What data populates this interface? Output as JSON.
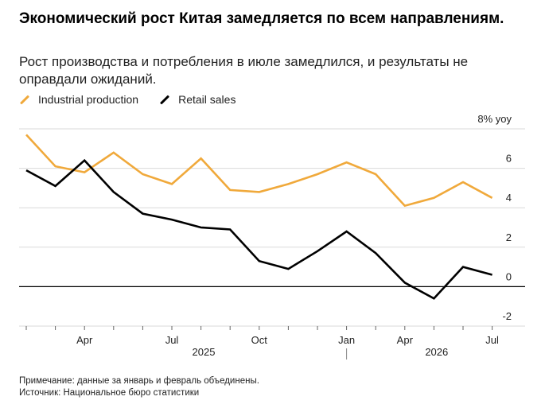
{
  "header": {
    "title": "Экономический рост Китая замедляется по всем направлениям.",
    "subtitle": "Рост производства и потребления в июле замедлился, и результаты не оправдали ожиданий."
  },
  "footer": {
    "note": "Примечание: данные за январь и февраль объединены.",
    "source": "Источник: Национальное бюро статистики"
  },
  "colors": {
    "industrial": "#f0a93b",
    "retail": "#000000",
    "grid": "#d9d9d9",
    "zero_line": "#000000"
  },
  "chart_data": {
    "type": "line",
    "title": "Экономический рост Китая замедляется по всем направлениям.",
    "subtitle": "Рост производства и потребления в июле замедлился, и результаты не оправдали ожиданий.",
    "unit": "% yoy",
    "ylim": [
      -2,
      8
    ],
    "y_ticks": [
      {
        "value": 8,
        "label": "8% yoy"
      },
      {
        "value": 6,
        "label": "6"
      },
      {
        "value": 4,
        "label": "4"
      },
      {
        "value": 2,
        "label": "2"
      },
      {
        "value": 0,
        "label": "0"
      },
      {
        "value": -2,
        "label": "-2"
      }
    ],
    "grid": true,
    "legend_position": "top-left",
    "x": [
      "2025-02",
      "2025-03",
      "2025-04",
      "2025-05",
      "2025-06",
      "2025-07",
      "2025-08",
      "2025-09",
      "2025-10",
      "2025-11",
      "2025-12",
      "2026-01/02",
      "2026-03",
      "2026-04",
      "2026-05",
      "2026-06",
      "2026-07"
    ],
    "x_tick_labels": [
      {
        "x": "2025-04",
        "label": "Apr"
      },
      {
        "x": "2025-07",
        "label": "Jul"
      },
      {
        "x": "2025-10",
        "label": "Oct"
      },
      {
        "x": "2026-01/02",
        "label": "Jan"
      },
      {
        "x": "2026-04",
        "label": "Apr"
      },
      {
        "x": "2026-07",
        "label": "Jul"
      }
    ],
    "year_labels": [
      {
        "x": "2025-07",
        "label": "2025"
      },
      {
        "x": "2026-04",
        "label": "2026"
      }
    ],
    "series": [
      {
        "name": "Industrial production",
        "color": "#f0a93b",
        "values": [
          7.7,
          6.1,
          5.8,
          6.8,
          5.7,
          5.2,
          6.5,
          4.9,
          4.8,
          5.2,
          5.7,
          6.3,
          5.7,
          4.1,
          4.5,
          5.3,
          4.5
        ]
      },
      {
        "name": "Retail sales",
        "color": "#000000",
        "values": [
          5.9,
          5.1,
          6.4,
          4.8,
          3.7,
          3.4,
          3.0,
          2.9,
          1.3,
          0.9,
          1.8,
          2.8,
          1.7,
          0.2,
          -0.6,
          1.0,
          0.6
        ]
      }
    ]
  }
}
